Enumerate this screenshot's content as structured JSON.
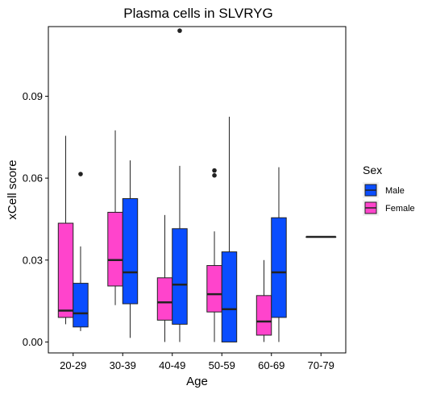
{
  "chart_data": {
    "type": "boxplot",
    "title": "Plasma cells in SLVRYG",
    "xlabel": "Age",
    "ylabel": "xCell score",
    "categories": [
      "20-29",
      "30-39",
      "40-49",
      "50-59",
      "60-69",
      "70-79"
    ],
    "ylim": [
      -0.004,
      0.1155
    ],
    "yticks": [
      0.0,
      0.03,
      0.06,
      0.09
    ],
    "ytick_labels": [
      "0.00",
      "0.03",
      "0.06",
      "0.09"
    ],
    "grid": false,
    "legend": {
      "title": "Sex",
      "placement": "right",
      "entries": [
        "Male",
        "Female"
      ]
    },
    "colors": {
      "Female": "#FF44CC",
      "Male": "#0A4DFF"
    },
    "series": [
      {
        "name": "Female",
        "boxes": [
          {
            "category": "20-29",
            "min": 0.0065,
            "q1": 0.009,
            "median": 0.0115,
            "q3": 0.0435,
            "max": 0.0755,
            "outliers": []
          },
          {
            "category": "30-39",
            "min": 0.0135,
            "q1": 0.0205,
            "median": 0.03,
            "q3": 0.0475,
            "max": 0.0775,
            "outliers": []
          },
          {
            "category": "40-49",
            "min": 0.0,
            "q1": 0.008,
            "median": 0.0145,
            "q3": 0.0235,
            "max": 0.0465,
            "outliers": []
          },
          {
            "category": "50-59",
            "min": 0.0,
            "q1": 0.011,
            "median": 0.0175,
            "q3": 0.028,
            "max": 0.0405,
            "outliers": [
              0.061,
              0.0628
            ]
          },
          {
            "category": "60-69",
            "min": 0.0,
            "q1": 0.0025,
            "median": 0.0075,
            "q3": 0.017,
            "max": 0.03,
            "outliers": []
          },
          {
            "category": "70-79",
            "min": 0.0385,
            "q1": 0.0385,
            "median": 0.0385,
            "q3": 0.0385,
            "max": 0.0385,
            "outliers": []
          }
        ]
      },
      {
        "name": "Male",
        "boxes": [
          {
            "category": "20-29",
            "min": 0.004,
            "q1": 0.0055,
            "median": 0.0105,
            "q3": 0.0215,
            "max": 0.035,
            "outliers": [
              0.0615
            ]
          },
          {
            "category": "30-39",
            "min": 0.0015,
            "q1": 0.014,
            "median": 0.0255,
            "q3": 0.0525,
            "max": 0.0665,
            "outliers": []
          },
          {
            "category": "40-49",
            "min": 0.0,
            "q1": 0.0065,
            "median": 0.021,
            "q3": 0.0415,
            "max": 0.0645,
            "outliers": [
              0.114
            ]
          },
          {
            "category": "50-59",
            "min": 0.0,
            "q1": 0.0,
            "median": 0.012,
            "q3": 0.033,
            "max": 0.0825,
            "outliers": []
          },
          {
            "category": "60-69",
            "min": 0.0,
            "q1": 0.009,
            "median": 0.0255,
            "q3": 0.0455,
            "max": 0.064,
            "outliers": []
          }
        ]
      }
    ]
  }
}
